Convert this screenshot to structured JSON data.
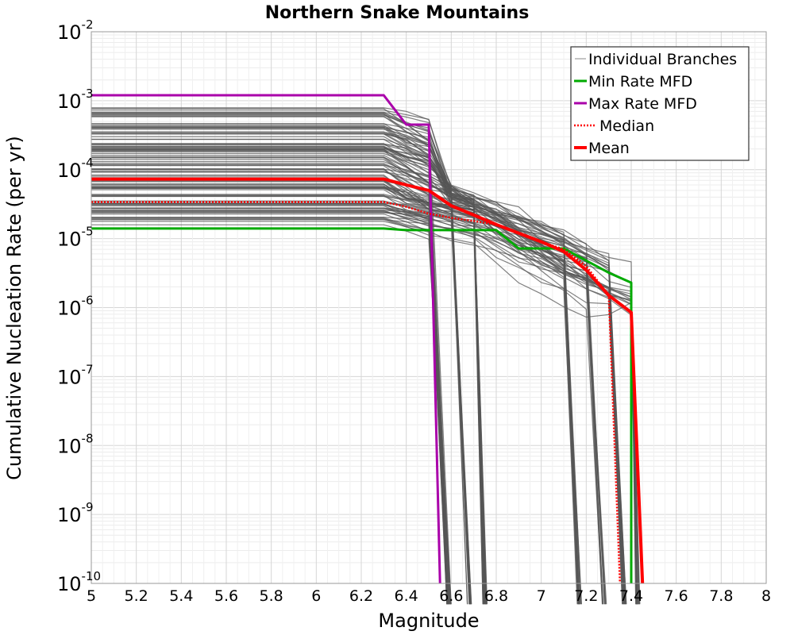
{
  "chart_data": {
    "type": "line",
    "title": "Northern Snake Mountains",
    "xlabel": "Magnitude",
    "ylabel": "Cumulative Nucleation Rate (per yr)",
    "xlim": [
      5,
      8
    ],
    "ylim": [
      1e-10,
      0.01
    ],
    "yscale": "log",
    "grid": true,
    "legend_position": "top-right",
    "x_ticks": [
      "5",
      "5.2",
      "5.4",
      "5.6",
      "5.8",
      "6",
      "6.2",
      "6.4",
      "6.6",
      "6.8",
      "7",
      "7.2",
      "7.4",
      "7.6",
      "7.8",
      "8"
    ],
    "y_ticks": [
      {
        "base": "10",
        "exp": "-10"
      },
      {
        "base": "10",
        "exp": "-9"
      },
      {
        "base": "10",
        "exp": "-8"
      },
      {
        "base": "10",
        "exp": "-7"
      },
      {
        "base": "10",
        "exp": "-6"
      },
      {
        "base": "10",
        "exp": "-5"
      },
      {
        "base": "10",
        "exp": "-4"
      },
      {
        "base": "10",
        "exp": "-3"
      },
      {
        "base": "10",
        "exp": "-2"
      }
    ],
    "series": [
      {
        "name": "Individual Branches",
        "color": "#555555",
        "style": "thin",
        "note_count": 120,
        "description_range": {
          "low": 1.5e-05,
          "high": 0.0008
        }
      },
      {
        "name": "Min Rate MFD",
        "color": "#00aa00",
        "style": "solid",
        "x": [
          5.0,
          6.3,
          6.4,
          6.5,
          6.6,
          6.7,
          6.8,
          6.9,
          7.0,
          7.1,
          7.2,
          7.3,
          7.4,
          7.4
        ],
        "y": [
          1.4e-05,
          1.4e-05,
          1.33e-05,
          1.33e-05,
          1.33e-05,
          1.33e-05,
          1.33e-05,
          7.2e-06,
          7.2e-06,
          7.2e-06,
          4.8e-06,
          3.2e-06,
          2.3e-06,
          1e-10
        ]
      },
      {
        "name": "Max Rate MFD",
        "color": "#aa00aa",
        "style": "solid",
        "x": [
          5.0,
          6.3,
          6.4,
          6.5,
          6.55
        ],
        "y": [
          0.0012,
          0.0012,
          0.00045,
          0.00045,
          1e-10
        ]
      },
      {
        "name": "Median",
        "color": "#ff0000",
        "style": "dotted",
        "x": [
          5.0,
          6.3,
          6.4,
          6.5,
          6.6,
          6.7,
          6.8,
          6.9,
          7.0,
          7.1,
          7.2,
          7.3,
          7.35
        ],
        "y": [
          3.4e-05,
          3.4e-05,
          2.9e-05,
          2.3e-05,
          2e-05,
          1.8e-05,
          1.6e-05,
          1.2e-05,
          9e-06,
          7e-06,
          4e-06,
          1.5e-06,
          1e-10
        ]
      },
      {
        "name": "Mean",
        "color": "#ff0000",
        "style": "thick",
        "x": [
          5.0,
          6.3,
          6.4,
          6.5,
          6.6,
          6.7,
          6.8,
          6.9,
          7.0,
          7.1,
          7.2,
          7.3,
          7.4,
          7.45
        ],
        "y": [
          7.3e-05,
          7.3e-05,
          6e-05,
          5e-05,
          3e-05,
          2.2e-05,
          1.6e-05,
          1.2e-05,
          9e-06,
          6.5e-06,
          3.5e-06,
          1.5e-06,
          8.5e-07,
          1e-10
        ]
      }
    ]
  }
}
